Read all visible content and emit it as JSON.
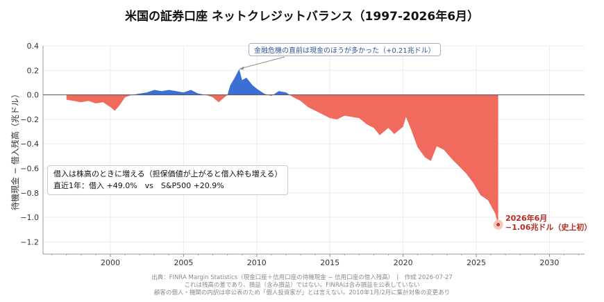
{
  "chart_data": {
    "type": "area",
    "title": "米国の証券口座 ネットクレジットバランス（1997-2026年6月）",
    "ylabel": "待機現金 − 借入残高（兆ドル）",
    "xlabel": "",
    "xlim": [
      1995.4,
      2032.4
    ],
    "ylim": [
      -1.3,
      0.4
    ],
    "x_ticks": [
      2000,
      2005,
      2010,
      2015,
      2020,
      2025,
      2030
    ],
    "y_ticks": [
      0.4,
      0.2,
      0.0,
      -0.2,
      -0.4,
      -0.6,
      -0.8,
      -1.0,
      -1.2
    ],
    "y_tick_labels": [
      "0.4",
      "0.2",
      "0.0",
      "−0.2",
      "−0.4",
      "−0.6",
      "−0.8",
      "−1.0",
      "−1.2"
    ],
    "grid": true,
    "colors": {
      "positive": "#3b6fd4",
      "negative": "#f16a5e",
      "latest_marker": "#c0392b",
      "zero_line": "#555555"
    },
    "series": [
      {
        "values": [
          [
            1997.0,
            -0.04
          ],
          [
            1997.5,
            -0.05
          ],
          [
            1998.0,
            -0.06
          ],
          [
            1998.5,
            -0.05
          ],
          [
            1999.0,
            -0.07
          ],
          [
            1999.5,
            -0.06
          ],
          [
            2000.0,
            -0.1
          ],
          [
            2000.3,
            -0.13
          ],
          [
            2000.6,
            -0.09
          ],
          [
            2001.0,
            -0.02
          ],
          [
            2001.5,
            0.0
          ],
          [
            2002.0,
            0.01
          ],
          [
            2002.5,
            0.02
          ],
          [
            2003.0,
            0.04
          ],
          [
            2003.5,
            0.03
          ],
          [
            2004.0,
            0.04
          ],
          [
            2004.5,
            0.03
          ],
          [
            2005.0,
            0.02
          ],
          [
            2005.5,
            0.04
          ],
          [
            2006.0,
            0.01
          ],
          [
            2006.5,
            0.0
          ],
          [
            2007.0,
            -0.02
          ],
          [
            2007.4,
            -0.06
          ],
          [
            2007.8,
            -0.02
          ],
          [
            2008.0,
            0.0
          ],
          [
            2008.2,
            0.08
          ],
          [
            2008.5,
            0.14
          ],
          [
            2008.8,
            0.21
          ],
          [
            2009.0,
            0.12
          ],
          [
            2009.3,
            0.14
          ],
          [
            2009.7,
            0.08
          ],
          [
            2010.0,
            0.05
          ],
          [
            2010.5,
            0.01
          ],
          [
            2011.0,
            -0.01
          ],
          [
            2011.5,
            0.03
          ],
          [
            2012.0,
            0.02
          ],
          [
            2012.5,
            -0.02
          ],
          [
            2013.0,
            -0.05
          ],
          [
            2013.5,
            -0.1
          ],
          [
            2014.0,
            -0.13
          ],
          [
            2014.5,
            -0.16
          ],
          [
            2015.0,
            -0.19
          ],
          [
            2015.5,
            -0.2
          ],
          [
            2016.0,
            -0.17
          ],
          [
            2016.5,
            -0.18
          ],
          [
            2017.0,
            -0.19
          ],
          [
            2017.5,
            -0.24
          ],
          [
            2018.0,
            -0.27
          ],
          [
            2018.4,
            -0.33
          ],
          [
            2019.0,
            -0.27
          ],
          [
            2019.4,
            -0.32
          ],
          [
            2020.0,
            -0.26
          ],
          [
            2020.2,
            -0.18
          ],
          [
            2020.6,
            -0.3
          ],
          [
            2021.0,
            -0.43
          ],
          [
            2021.5,
            -0.51
          ],
          [
            2021.9,
            -0.54
          ],
          [
            2022.3,
            -0.42
          ],
          [
            2022.8,
            -0.45
          ],
          [
            2023.3,
            -0.52
          ],
          [
            2023.8,
            -0.58
          ],
          [
            2024.3,
            -0.64
          ],
          [
            2024.8,
            -0.72
          ],
          [
            2025.3,
            -0.82
          ],
          [
            2025.8,
            -0.86
          ],
          [
            2026.3,
            -0.97
          ],
          [
            2026.5,
            -1.06
          ]
        ]
      }
    ],
    "annotations": [
      {
        "text": "金融危機の直前は現金のほうが多かった（+0.21兆ドル）",
        "x": 2008.8,
        "y": 0.21
      },
      {
        "line1": "2026年6月",
        "line2": "−1.06兆ドル（史上初）",
        "x": 2026.5,
        "y": -1.06
      }
    ],
    "note": {
      "line1": "借入は株高のときに増える（担保価値が上がると借入枠も増える）",
      "line2": "直近1年：借入 +49.0%　vs　S&P500 +20.9%"
    },
    "source": [
      "出典：FINRA Margin Statistics（現金口座＋信用口座の待機現金 − 信用口座の借入残高）　|　作成 2026-07-27",
      "これは残高の差であり、損益（含み損益）ではない。FINRAは含み損益を公表していない",
      "顧客の個人・機関の内訳は非公表のため「個人投資家が」とは言えない。2010年1月/2月に集計対象の変更あり"
    ]
  }
}
